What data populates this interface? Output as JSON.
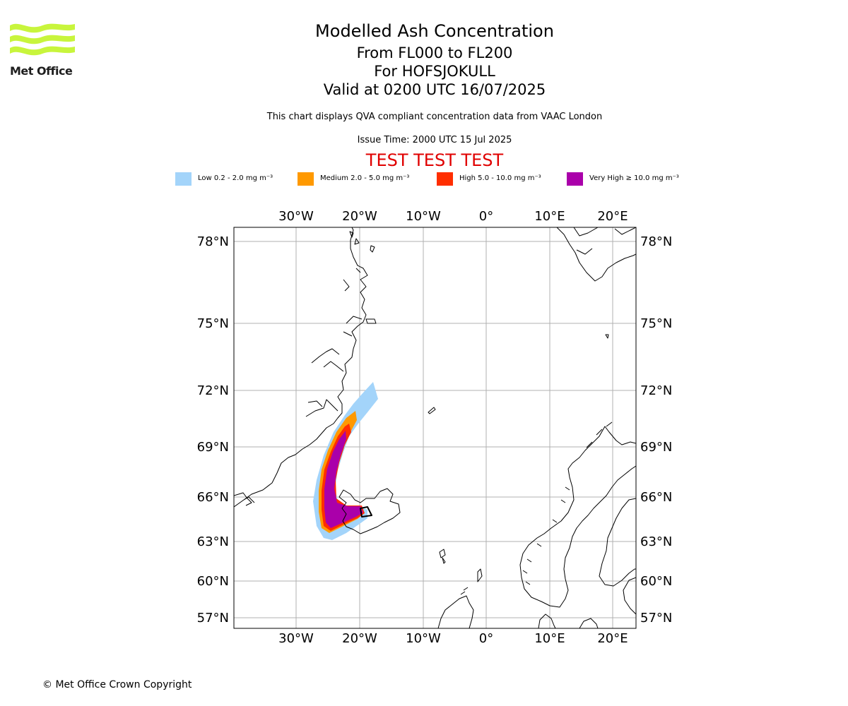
{
  "logo": {
    "text": "Met Office"
  },
  "header": {
    "title": "Modelled Ash Concentration",
    "levels": "From FL000 to FL200",
    "volcano": "For HOFSJOKULL",
    "valid": "Valid at 0200 UTC 16/07/2025",
    "description": "This chart displays QVA compliant concentration data from VAAC London",
    "issue_time": "Issue Time: 2000 UTC 15 Jul 2025",
    "test_banner": "TEST TEST TEST"
  },
  "legend": [
    {
      "label": "Low 0.2 - 2.0 mg m⁻³",
      "color": "#a3d4fa"
    },
    {
      "label": "Medium 2.0 - 5.0 mg m⁻³",
      "color": "#ff9900"
    },
    {
      "label": "High 5.0 - 10.0 mg m⁻³",
      "color": "#ff2e00"
    },
    {
      "label": "Very High ≥ 10.0 mg m⁻³",
      "color": "#aa00aa"
    }
  ],
  "map": {
    "lon_labels": [
      "30°W",
      "20°W",
      "10°W",
      "0°",
      "10°E",
      "20°E"
    ],
    "lat_labels": [
      "78°N",
      "75°N",
      "72°N",
      "69°N",
      "66°N",
      "63°N",
      "60°N",
      "57°N"
    ],
    "grid_color": "#b0b0b0",
    "coast_color": "#000000"
  },
  "footer": {
    "copyright": "© Met Office Crown Copyright"
  }
}
